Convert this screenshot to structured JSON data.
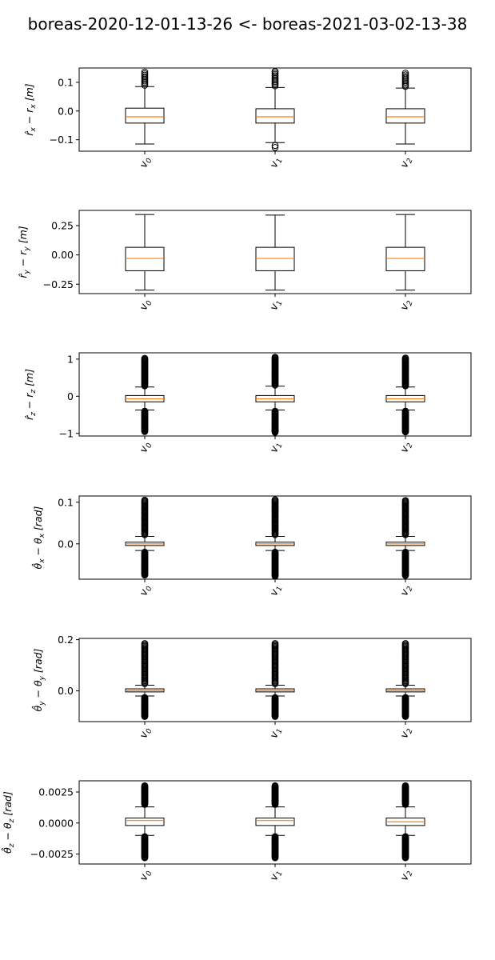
{
  "figure": {
    "title": "boreas-2020-12-01-13-26 <- boreas-2021-03-02-13-38"
  },
  "chart_data": [
    {
      "type": "box",
      "ylabel_latex": "\\hat{r}_x - r_x\\ [m]",
      "ylabel_parts": {
        "main": "r̂",
        "sub": "x",
        "minus": " − r",
        "sub2": "x",
        "unit": "[m]"
      },
      "categories": [
        "v0",
        "v1",
        "v2"
      ],
      "ylim": [
        -0.14,
        0.15
      ],
      "yticks": [
        -0.1,
        0.0,
        0.1
      ],
      "ytick_labels": [
        "−0.1",
        "0.0",
        "0.1"
      ],
      "boxes": [
        {
          "q1": -0.042,
          "median": -0.02,
          "q3": 0.01,
          "whislo": -0.115,
          "whishi": 0.085,
          "fliers": [
            0.09,
            0.095,
            0.1,
            0.105,
            0.11,
            0.115,
            0.12,
            0.125,
            0.13,
            0.136
          ]
        },
        {
          "q1": -0.042,
          "median": -0.02,
          "q3": 0.008,
          "whislo": -0.11,
          "whishi": 0.082,
          "fliers": [
            0.088,
            0.093,
            0.098,
            0.103,
            0.108,
            0.113,
            0.118,
            0.123,
            0.128,
            0.133,
            0.138,
            -0.12,
            -0.127
          ]
        },
        {
          "q1": -0.042,
          "median": -0.02,
          "q3": 0.008,
          "whislo": -0.115,
          "whishi": 0.08,
          "fliers": [
            0.086,
            0.091,
            0.096,
            0.101,
            0.106,
            0.111,
            0.116,
            0.121,
            0.126,
            0.132
          ]
        }
      ]
    },
    {
      "type": "box",
      "ylabel_latex": "\\hat{r}_y - r_y\\ [m]",
      "ylabel_parts": {
        "main": "r̂",
        "sub": "y",
        "minus": " − r",
        "sub2": "y",
        "unit": "[m]"
      },
      "categories": [
        "v0",
        "v1",
        "v2"
      ],
      "ylim": [
        -0.33,
        0.38
      ],
      "yticks": [
        -0.25,
        0.0,
        0.25
      ],
      "ytick_labels": [
        "−0.25",
        "0.00",
        "0.25"
      ],
      "boxes": [
        {
          "q1": -0.135,
          "median": -0.03,
          "q3": 0.065,
          "whislo": -0.3,
          "whishi": 0.345,
          "fliers": []
        },
        {
          "q1": -0.135,
          "median": -0.03,
          "q3": 0.065,
          "whislo": -0.3,
          "whishi": 0.34,
          "fliers": []
        },
        {
          "q1": -0.135,
          "median": -0.03,
          "q3": 0.065,
          "whislo": -0.3,
          "whishi": 0.345,
          "fliers": []
        }
      ]
    },
    {
      "type": "box",
      "ylabel_latex": "\\hat{r}_z - r_z\\ [m]",
      "ylabel_parts": {
        "main": "r̂",
        "sub": "z",
        "minus": " − r",
        "sub2": "z",
        "unit": "[m]"
      },
      "categories": [
        "v0",
        "v1",
        "v2"
      ],
      "ylim": [
        -1.07,
        1.17
      ],
      "yticks": [
        -1,
        0,
        1
      ],
      "ytick_labels": [
        "−1",
        "0",
        "1"
      ],
      "boxes": [
        {
          "q1": -0.15,
          "median": -0.07,
          "q3": 0.02,
          "whislo": -0.37,
          "whishi": 0.25,
          "fliers_range": [
            [
              0.28,
              1.02
            ],
            [
              -0.95,
              -0.4
            ]
          ]
        },
        {
          "q1": -0.15,
          "median": -0.07,
          "q3": 0.02,
          "whislo": -0.37,
          "whishi": 0.27,
          "fliers_range": [
            [
              0.3,
              1.05
            ],
            [
              -0.97,
              -0.4
            ]
          ]
        },
        {
          "q1": -0.15,
          "median": -0.07,
          "q3": 0.02,
          "whislo": -0.37,
          "whishi": 0.25,
          "fliers_range": [
            [
              0.28,
              1.03
            ],
            [
              -0.96,
              -0.4
            ]
          ]
        }
      ]
    },
    {
      "type": "box",
      "ylabel_latex": "\\hat{\\theta}_x - \\theta_x\\ [rad]",
      "ylabel_parts": {
        "main": "θ̂",
        "sub": "x",
        "minus": " − θ",
        "sub2": "x",
        "unit": "[rad]"
      },
      "categories": [
        "v0",
        "v1",
        "v2"
      ],
      "ylim": [
        -0.085,
        0.115
      ],
      "yticks": [
        0.0,
        0.1
      ],
      "ytick_labels": [
        "0.0",
        "0.1"
      ],
      "boxes": [
        {
          "q1": -0.004,
          "median": 0.0,
          "q3": 0.004,
          "whislo": -0.016,
          "whishi": 0.018,
          "fliers_range": [
            [
              0.022,
              0.105
            ],
            [
              -0.075,
              -0.02
            ]
          ]
        },
        {
          "q1": -0.004,
          "median": 0.0,
          "q3": 0.004,
          "whislo": -0.016,
          "whishi": 0.018,
          "fliers_range": [
            [
              0.022,
              0.106
            ],
            [
              -0.078,
              -0.02
            ]
          ]
        },
        {
          "q1": -0.004,
          "median": 0.0,
          "q3": 0.004,
          "whislo": -0.016,
          "whishi": 0.018,
          "fliers_range": [
            [
              0.022,
              0.104
            ],
            [
              -0.076,
              -0.02
            ]
          ]
        }
      ]
    },
    {
      "type": "box",
      "ylabel_latex": "\\hat{\\theta}_y - \\theta_y\\ [rad]",
      "ylabel_parts": {
        "main": "θ̂",
        "sub": "y",
        "minus": " − θ",
        "sub2": "y",
        "unit": "[rad]"
      },
      "categories": [
        "v0",
        "v1",
        "v2"
      ],
      "ylim": [
        -0.12,
        0.205
      ],
      "yticks": [
        0.0,
        0.2
      ],
      "ytick_labels": [
        "0.0",
        "0.2"
      ],
      "boxes": [
        {
          "q1": -0.004,
          "median": 0.001,
          "q3": 0.008,
          "whislo": -0.02,
          "whishi": 0.022,
          "fliers_range": [
            [
              0.028,
              0.185
            ],
            [
              -0.1,
              -0.026
            ]
          ]
        },
        {
          "q1": -0.004,
          "median": 0.001,
          "q3": 0.008,
          "whislo": -0.02,
          "whishi": 0.022,
          "fliers_range": [
            [
              0.028,
              0.185
            ],
            [
              -0.1,
              -0.026
            ]
          ]
        },
        {
          "q1": -0.004,
          "median": 0.001,
          "q3": 0.008,
          "whislo": -0.02,
          "whishi": 0.022,
          "fliers_range": [
            [
              0.028,
              0.185
            ],
            [
              -0.1,
              -0.026
            ]
          ]
        }
      ]
    },
    {
      "type": "box",
      "ylabel_latex": "\\hat{\\theta}_z - \\theta_z\\ [rad]",
      "ylabel_parts": {
        "main": "θ̂",
        "sub": "z",
        "minus": " − θ",
        "sub2": "z",
        "unit": "[rad]"
      },
      "categories": [
        "v0",
        "v1",
        "v2"
      ],
      "ylim": [
        -0.0033,
        0.0034
      ],
      "yticks": [
        -0.0025,
        0.0,
        0.0025
      ],
      "ytick_labels": [
        "−0.0025",
        "0.0000",
        "0.0025"
      ],
      "boxes": [
        {
          "q1": -0.0002,
          "median": 0.0002,
          "q3": 0.0004,
          "whislo": -0.001,
          "whishi": 0.0013,
          "fliers_range": [
            [
              0.0015,
              0.003
            ],
            [
              -0.0028,
              -0.0011
            ]
          ]
        },
        {
          "q1": -0.0002,
          "median": 0.0002,
          "q3": 0.0004,
          "whislo": -0.001,
          "whishi": 0.0013,
          "fliers_range": [
            [
              0.0015,
              0.003
            ],
            [
              -0.0028,
              -0.0011
            ]
          ]
        },
        {
          "q1": -0.0002,
          "median": 0.0001,
          "q3": 0.0004,
          "whislo": -0.001,
          "whishi": 0.0013,
          "fliers_range": [
            [
              0.0015,
              0.003
            ],
            [
              -0.0028,
              -0.0011
            ]
          ]
        }
      ]
    }
  ],
  "colors": {
    "median": "#ff7f0e",
    "stroke": "#000000",
    "background": "#ffffff"
  }
}
